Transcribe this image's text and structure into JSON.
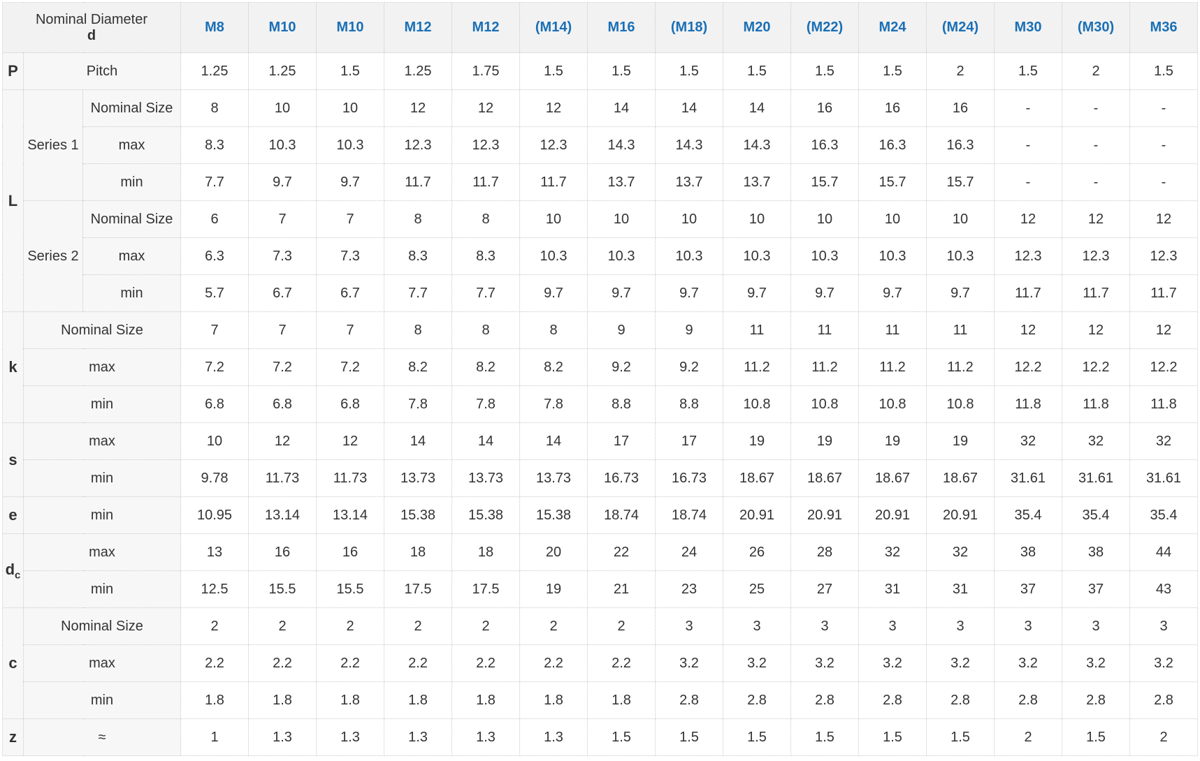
{
  "header": {
    "title": "Nominal Diameter",
    "symbol": "d",
    "columns": [
      "M8",
      "M10",
      "M10",
      "M12",
      "M12",
      "(M14)",
      "M16",
      "(M18)",
      "M20",
      "(M22)",
      "M24",
      "(M24)",
      "M30",
      "(M30)",
      "M36"
    ]
  },
  "groups": [
    {
      "symbol": "P",
      "rows": [
        {
          "label": "Pitch",
          "values": [
            "1.25",
            "1.25",
            "1.5",
            "1.25",
            "1.75",
            "1.5",
            "1.5",
            "1.5",
            "1.5",
            "1.5",
            "1.5",
            "2",
            "1.5",
            "2",
            "1.5"
          ]
        }
      ]
    },
    {
      "symbol": "L",
      "subgroups": [
        {
          "name": "Series 1",
          "rows": [
            {
              "label": "Nominal Size",
              "values": [
                "8",
                "10",
                "10",
                "12",
                "12",
                "12",
                "14",
                "14",
                "14",
                "16",
                "16",
                "16",
                "-",
                "-",
                "-"
              ]
            },
            {
              "label": "max",
              "values": [
                "8.3",
                "10.3",
                "10.3",
                "12.3",
                "12.3",
                "12.3",
                "14.3",
                "14.3",
                "14.3",
                "16.3",
                "16.3",
                "16.3",
                "-",
                "-",
                "-"
              ]
            },
            {
              "label": "min",
              "values": [
                "7.7",
                "9.7",
                "9.7",
                "11.7",
                "11.7",
                "11.7",
                "13.7",
                "13.7",
                "13.7",
                "15.7",
                "15.7",
                "15.7",
                "-",
                "-",
                "-"
              ]
            }
          ]
        },
        {
          "name": "Series 2",
          "rows": [
            {
              "label": "Nominal Size",
              "values": [
                "6",
                "7",
                "7",
                "8",
                "8",
                "10",
                "10",
                "10",
                "10",
                "10",
                "10",
                "10",
                "12",
                "12",
                "12"
              ]
            },
            {
              "label": "max",
              "values": [
                "6.3",
                "7.3",
                "7.3",
                "8.3",
                "8.3",
                "10.3",
                "10.3",
                "10.3",
                "10.3",
                "10.3",
                "10.3",
                "10.3",
                "12.3",
                "12.3",
                "12.3"
              ]
            },
            {
              "label": "min",
              "values": [
                "5.7",
                "6.7",
                "6.7",
                "7.7",
                "7.7",
                "9.7",
                "9.7",
                "9.7",
                "9.7",
                "9.7",
                "9.7",
                "9.7",
                "11.7",
                "11.7",
                "11.7"
              ]
            }
          ]
        }
      ]
    },
    {
      "symbol": "k",
      "rows": [
        {
          "label": "Nominal Size",
          "values": [
            "7",
            "7",
            "7",
            "8",
            "8",
            "8",
            "9",
            "9",
            "11",
            "11",
            "11",
            "11",
            "12",
            "12",
            "12"
          ]
        },
        {
          "label": "max",
          "values": [
            "7.2",
            "7.2",
            "7.2",
            "8.2",
            "8.2",
            "8.2",
            "9.2",
            "9.2",
            "11.2",
            "11.2",
            "11.2",
            "11.2",
            "12.2",
            "12.2",
            "12.2"
          ]
        },
        {
          "label": "min",
          "values": [
            "6.8",
            "6.8",
            "6.8",
            "7.8",
            "7.8",
            "7.8",
            "8.8",
            "8.8",
            "10.8",
            "10.8",
            "10.8",
            "10.8",
            "11.8",
            "11.8",
            "11.8"
          ]
        }
      ]
    },
    {
      "symbol": "s",
      "rows": [
        {
          "label": "max",
          "values": [
            "10",
            "12",
            "12",
            "14",
            "14",
            "14",
            "17",
            "17",
            "19",
            "19",
            "19",
            "19",
            "32",
            "32",
            "32"
          ]
        },
        {
          "label": "min",
          "values": [
            "9.78",
            "11.73",
            "11.73",
            "13.73",
            "13.73",
            "13.73",
            "16.73",
            "16.73",
            "18.67",
            "18.67",
            "18.67",
            "18.67",
            "31.61",
            "31.61",
            "31.61"
          ]
        }
      ]
    },
    {
      "symbol": "e",
      "rows": [
        {
          "label": "min",
          "values": [
            "10.95",
            "13.14",
            "13.14",
            "15.38",
            "15.38",
            "15.38",
            "18.74",
            "18.74",
            "20.91",
            "20.91",
            "20.91",
            "20.91",
            "35.4",
            "35.4",
            "35.4"
          ]
        }
      ]
    },
    {
      "symbol": "d",
      "subscript": "c",
      "rows": [
        {
          "label": "max",
          "values": [
            "13",
            "16",
            "16",
            "18",
            "18",
            "20",
            "22",
            "24",
            "26",
            "28",
            "32",
            "32",
            "38",
            "38",
            "44"
          ]
        },
        {
          "label": "min",
          "values": [
            "12.5",
            "15.5",
            "15.5",
            "17.5",
            "17.5",
            "19",
            "21",
            "23",
            "25",
            "27",
            "31",
            "31",
            "37",
            "37",
            "43"
          ]
        }
      ]
    },
    {
      "symbol": "c",
      "rows": [
        {
          "label": "Nominal Size",
          "values": [
            "2",
            "2",
            "2",
            "2",
            "2",
            "2",
            "2",
            "3",
            "3",
            "3",
            "3",
            "3",
            "3",
            "3",
            "3"
          ]
        },
        {
          "label": "max",
          "values": [
            "2.2",
            "2.2",
            "2.2",
            "2.2",
            "2.2",
            "2.2",
            "2.2",
            "3.2",
            "3.2",
            "3.2",
            "3.2",
            "3.2",
            "3.2",
            "3.2",
            "3.2"
          ]
        },
        {
          "label": "min",
          "values": [
            "1.8",
            "1.8",
            "1.8",
            "1.8",
            "1.8",
            "1.8",
            "1.8",
            "2.8",
            "2.8",
            "2.8",
            "2.8",
            "2.8",
            "2.8",
            "2.8",
            "2.8"
          ]
        }
      ]
    },
    {
      "symbol": "z",
      "rows": [
        {
          "label": "≈",
          "values": [
            "1",
            "1.3",
            "1.3",
            "1.3",
            "1.3",
            "1.3",
            "1.5",
            "1.5",
            "1.5",
            "1.5",
            "1.5",
            "1.5",
            "2",
            "1.5",
            "2"
          ]
        }
      ]
    }
  ]
}
